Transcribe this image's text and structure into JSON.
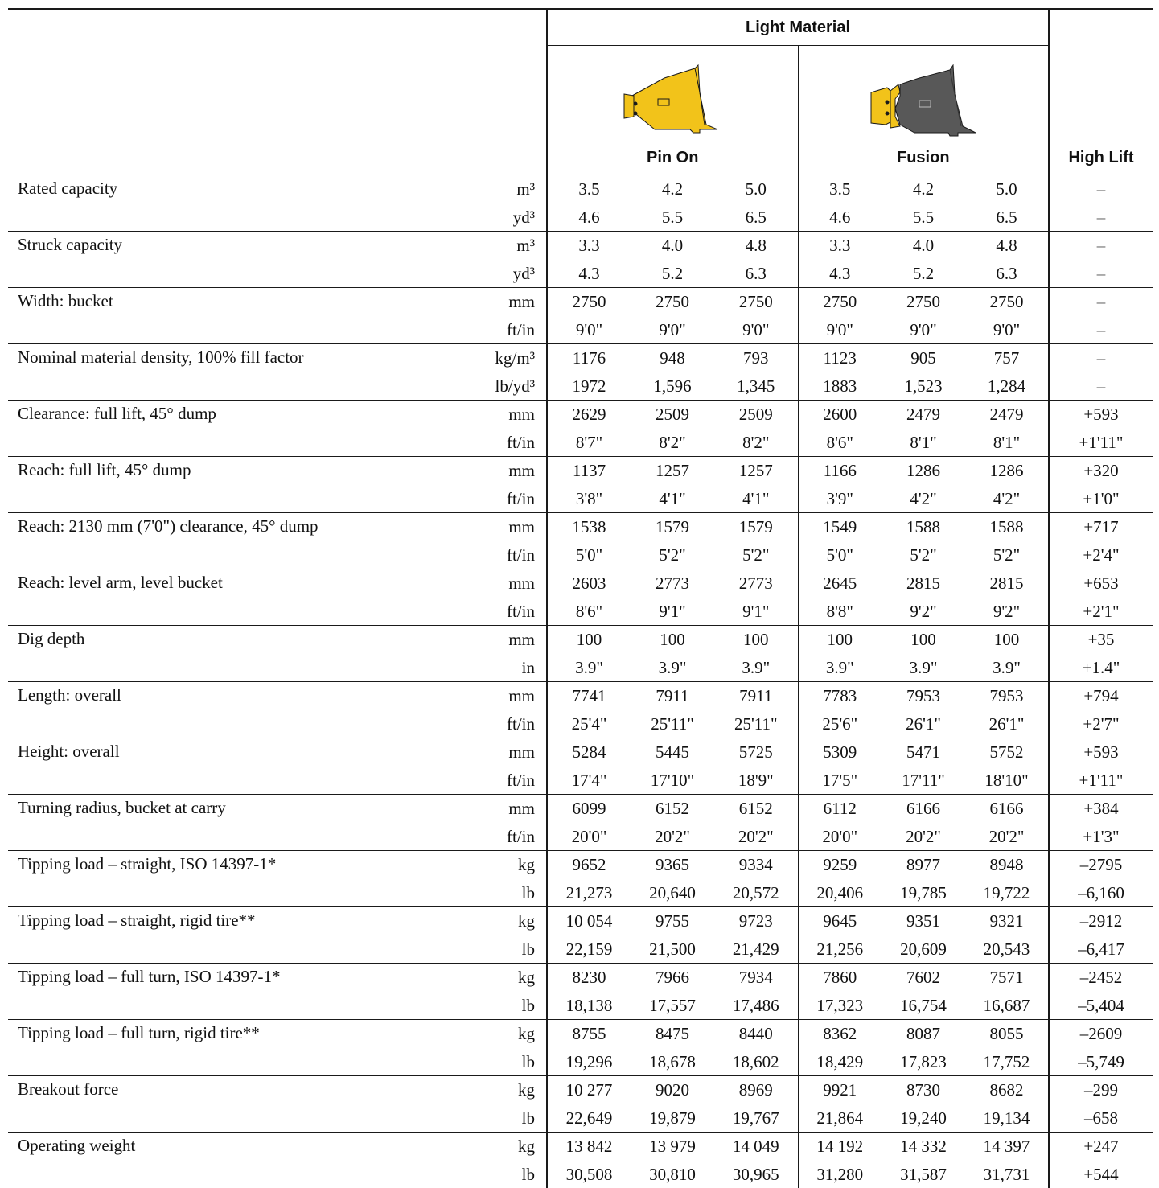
{
  "header": {
    "group_label": "Light Material",
    "col_pin_on": "Pin On",
    "col_fusion": "Fusion",
    "col_high_lift": "High Lift",
    "icons": {
      "pin_on": "yellow-bucket-icon",
      "fusion": "gray-bucket-icon"
    },
    "colors": {
      "pin_on": "#F2C31A",
      "fusion": "#585858"
    }
  },
  "rows": [
    {
      "label": "Rated capacity",
      "sub": [
        {
          "unit": "m³",
          "values": [
            "3.5",
            "4.2",
            "5.0",
            "3.5",
            "4.2",
            "5.0"
          ],
          "high_lift": "–"
        },
        {
          "unit": "yd³",
          "values": [
            "4.6",
            "5.5",
            "6.5",
            "4.6",
            "5.5",
            "6.5"
          ],
          "high_lift": "–"
        }
      ]
    },
    {
      "label": "Struck capacity",
      "sub": [
        {
          "unit": "m³",
          "values": [
            "3.3",
            "4.0",
            "4.8",
            "3.3",
            "4.0",
            "4.8"
          ],
          "high_lift": "–"
        },
        {
          "unit": "yd³",
          "values": [
            "4.3",
            "5.2",
            "6.3",
            "4.3",
            "5.2",
            "6.3"
          ],
          "high_lift": "–"
        }
      ]
    },
    {
      "label": "Width: bucket",
      "sub": [
        {
          "unit": "mm",
          "values": [
            "2750",
            "2750",
            "2750",
            "2750",
            "2750",
            "2750"
          ],
          "high_lift": "–"
        },
        {
          "unit": "ft/in",
          "values": [
            "9'0\"",
            "9'0\"",
            "9'0\"",
            "9'0\"",
            "9'0\"",
            "9'0\""
          ],
          "high_lift": "–"
        }
      ]
    },
    {
      "label": "Nominal material density, 100% fill factor",
      "sub": [
        {
          "unit": "kg/m³",
          "values": [
            "1176",
            "948",
            "793",
            "1123",
            "905",
            "757"
          ],
          "high_lift": "–"
        },
        {
          "unit": "lb/yd³",
          "values": [
            "1972",
            "1,596",
            "1,345",
            "1883",
            "1,523",
            "1,284"
          ],
          "high_lift": "–"
        }
      ]
    },
    {
      "label": "Clearance: full lift, 45° dump",
      "sub": [
        {
          "unit": "mm",
          "values": [
            "2629",
            "2509",
            "2509",
            "2600",
            "2479",
            "2479"
          ],
          "high_lift": "+593"
        },
        {
          "unit": "ft/in",
          "values": [
            "8'7\"",
            "8'2\"",
            "8'2\"",
            "8'6\"",
            "8'1\"",
            "8'1\""
          ],
          "high_lift": "+1'11\""
        }
      ]
    },
    {
      "label": "Reach: full lift, 45° dump",
      "sub": [
        {
          "unit": "mm",
          "values": [
            "1137",
            "1257",
            "1257",
            "1166",
            "1286",
            "1286"
          ],
          "high_lift": "+320"
        },
        {
          "unit": "ft/in",
          "values": [
            "3'8\"",
            "4'1\"",
            "4'1\"",
            "3'9\"",
            "4'2\"",
            "4'2\""
          ],
          "high_lift": "+1'0\""
        }
      ]
    },
    {
      "label": "Reach: 2130 mm (7'0\") clearance, 45° dump",
      "sub": [
        {
          "unit": "mm",
          "values": [
            "1538",
            "1579",
            "1579",
            "1549",
            "1588",
            "1588"
          ],
          "high_lift": "+717"
        },
        {
          "unit": "ft/in",
          "values": [
            "5'0\"",
            "5'2\"",
            "5'2\"",
            "5'0\"",
            "5'2\"",
            "5'2\""
          ],
          "high_lift": "+2'4\""
        }
      ]
    },
    {
      "label": "Reach: level arm, level bucket",
      "sub": [
        {
          "unit": "mm",
          "values": [
            "2603",
            "2773",
            "2773",
            "2645",
            "2815",
            "2815"
          ],
          "high_lift": "+653"
        },
        {
          "unit": "ft/in",
          "values": [
            "8'6\"",
            "9'1\"",
            "9'1\"",
            "8'8\"",
            "9'2\"",
            "9'2\""
          ],
          "high_lift": "+2'1\""
        }
      ]
    },
    {
      "label": "Dig depth",
      "sub": [
        {
          "unit": "mm",
          "values": [
            "100",
            "100",
            "100",
            "100",
            "100",
            "100"
          ],
          "high_lift": "+35"
        },
        {
          "unit": "in",
          "values": [
            "3.9\"",
            "3.9\"",
            "3.9\"",
            "3.9\"",
            "3.9\"",
            "3.9\""
          ],
          "high_lift": "+1.4\""
        }
      ]
    },
    {
      "label": "Length: overall",
      "sub": [
        {
          "unit": "mm",
          "values": [
            "7741",
            "7911",
            "7911",
            "7783",
            "7953",
            "7953"
          ],
          "high_lift": "+794"
        },
        {
          "unit": "ft/in",
          "values": [
            "25'4\"",
            "25'11\"",
            "25'11\"",
            "25'6\"",
            "26'1\"",
            "26'1\""
          ],
          "high_lift": "+2'7\""
        }
      ]
    },
    {
      "label": "Height: overall",
      "sub": [
        {
          "unit": "mm",
          "values": [
            "5284",
            "5445",
            "5725",
            "5309",
            "5471",
            "5752"
          ],
          "high_lift": "+593"
        },
        {
          "unit": "ft/in",
          "values": [
            "17'4\"",
            "17'10\"",
            "18'9\"",
            "17'5\"",
            "17'11\"",
            "18'10\""
          ],
          "high_lift": "+1'11\""
        }
      ]
    },
    {
      "label": "Turning radius, bucket at carry",
      "sub": [
        {
          "unit": "mm",
          "values": [
            "6099",
            "6152",
            "6152",
            "6112",
            "6166",
            "6166"
          ],
          "high_lift": "+384"
        },
        {
          "unit": "ft/in",
          "values": [
            "20'0\"",
            "20'2\"",
            "20'2\"",
            "20'0\"",
            "20'2\"",
            "20'2\""
          ],
          "high_lift": "+1'3\""
        }
      ]
    },
    {
      "label": "Tipping load – straight, ISO 14397-1*",
      "sub": [
        {
          "unit": "kg",
          "values": [
            "9652",
            "9365",
            "9334",
            "9259",
            "8977",
            "8948"
          ],
          "high_lift": "–2795"
        },
        {
          "unit": "lb",
          "values": [
            "21,273",
            "20,640",
            "20,572",
            "20,406",
            "19,785",
            "19,722"
          ],
          "high_lift": "–6,160"
        }
      ]
    },
    {
      "label": "Tipping load – straight, rigid tire**",
      "sub": [
        {
          "unit": "kg",
          "values": [
            "10 054",
            "9755",
            "9723",
            "9645",
            "9351",
            "9321"
          ],
          "high_lift": "–2912"
        },
        {
          "unit": "lb",
          "values": [
            "22,159",
            "21,500",
            "21,429",
            "21,256",
            "20,609",
            "20,543"
          ],
          "high_lift": "–6,417"
        }
      ]
    },
    {
      "label": "Tipping load – full turn, ISO 14397-1*",
      "sub": [
        {
          "unit": "kg",
          "values": [
            "8230",
            "7966",
            "7934",
            "7860",
            "7602",
            "7571"
          ],
          "high_lift": "–2452"
        },
        {
          "unit": "lb",
          "values": [
            "18,138",
            "17,557",
            "17,486",
            "17,323",
            "16,754",
            "16,687"
          ],
          "high_lift": "–5,404"
        }
      ]
    },
    {
      "label": "Tipping load – full turn, rigid tire**",
      "sub": [
        {
          "unit": "kg",
          "values": [
            "8755",
            "8475",
            "8440",
            "8362",
            "8087",
            "8055"
          ],
          "high_lift": "–2609"
        },
        {
          "unit": "lb",
          "values": [
            "19,296",
            "18,678",
            "18,602",
            "18,429",
            "17,823",
            "17,752"
          ],
          "high_lift": "–5,749"
        }
      ]
    },
    {
      "label": "Breakout force",
      "sub": [
        {
          "unit": "kg",
          "values": [
            "10 277",
            "9020",
            "8969",
            "9921",
            "8730",
            "8682"
          ],
          "high_lift": "–299"
        },
        {
          "unit": "lb",
          "values": [
            "22,649",
            "19,879",
            "19,767",
            "21,864",
            "19,240",
            "19,134"
          ],
          "high_lift": "–658"
        }
      ]
    },
    {
      "label": "Operating weight",
      "sub": [
        {
          "unit": "kg",
          "values": [
            "13 842",
            "13 979",
            "14 049",
            "14 192",
            "14 332",
            "14 397"
          ],
          "high_lift": "+247"
        },
        {
          "unit": "lb",
          "values": [
            "30,508",
            "30,810",
            "30,965",
            "31,280",
            "31,587",
            "31,731"
          ],
          "high_lift": "+544"
        }
      ]
    }
  ]
}
